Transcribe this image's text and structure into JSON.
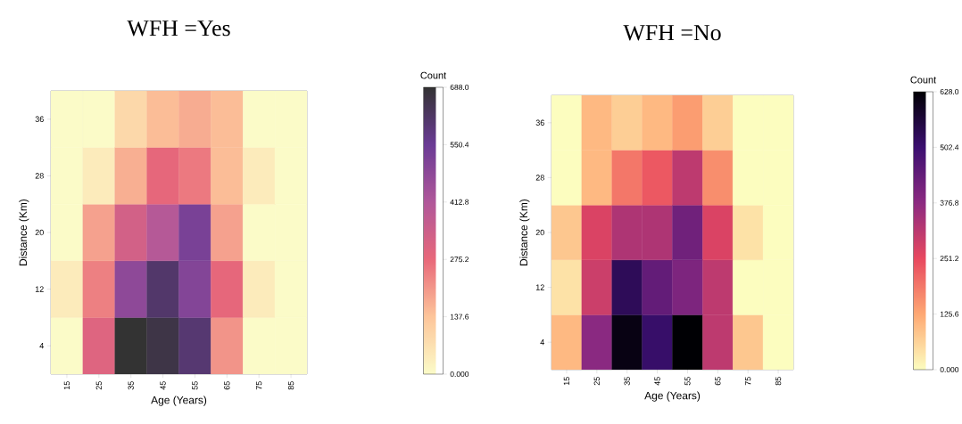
{
  "chart_data": [
    {
      "type": "heatmap",
      "title": "WFH =Yes",
      "xlabel": "Age (Years)",
      "ylabel": "Distance (Km)",
      "clabel": "Count",
      "categories": [
        "15",
        "25",
        "35",
        "45",
        "55",
        "65",
        "75",
        "85"
      ],
      "y_categories": [
        "36",
        "28",
        "20",
        "12",
        "4"
      ],
      "cells": [
        [
          0,
          0,
          90,
          150,
          175,
          150,
          0,
          0
        ],
        [
          0,
          40,
          170,
          280,
          250,
          150,
          40,
          0
        ],
        [
          0,
          190,
          330,
          400,
          520,
          190,
          0,
          0
        ],
        [
          40,
          240,
          480,
          610,
          500,
          280,
          40,
          0
        ],
        [
          0,
          300,
          688,
          660,
          600,
          210,
          0,
          0
        ]
      ],
      "clim": [
        0,
        688
      ],
      "cticks": [
        {
          "value": 0,
          "label": "0.000"
        },
        137.6,
        275.2,
        412.8,
        550.4,
        {
          "value": 688,
          "label": "688.0"
        }
      ]
    },
    {
      "type": "heatmap",
      "title": "WFH =No",
      "xlabel": "Age (Years)",
      "ylabel": "Distance (Km)",
      "clabel": "Count",
      "categories": [
        "15",
        "25",
        "35",
        "45",
        "55",
        "65",
        "75",
        "85"
      ],
      "y_categories": [
        "36",
        "28",
        "20",
        "12",
        "4"
      ],
      "cells": [
        [
          0,
          100,
          70,
          100,
          140,
          70,
          0,
          0
        ],
        [
          0,
          100,
          190,
          230,
          310,
          160,
          0,
          0
        ],
        [
          80,
          270,
          330,
          330,
          420,
          270,
          40,
          0
        ],
        [
          40,
          290,
          530,
          440,
          400,
          310,
          0,
          0
        ],
        [
          100,
          380,
          610,
          510,
          628,
          310,
          80,
          0
        ]
      ],
      "clim": [
        0,
        628
      ],
      "cticks": [
        {
          "value": 0,
          "label": "0.000"
        },
        125.6,
        251.2,
        376.8,
        502.4,
        {
          "value": 628,
          "label": "628.0"
        }
      ]
    }
  ]
}
